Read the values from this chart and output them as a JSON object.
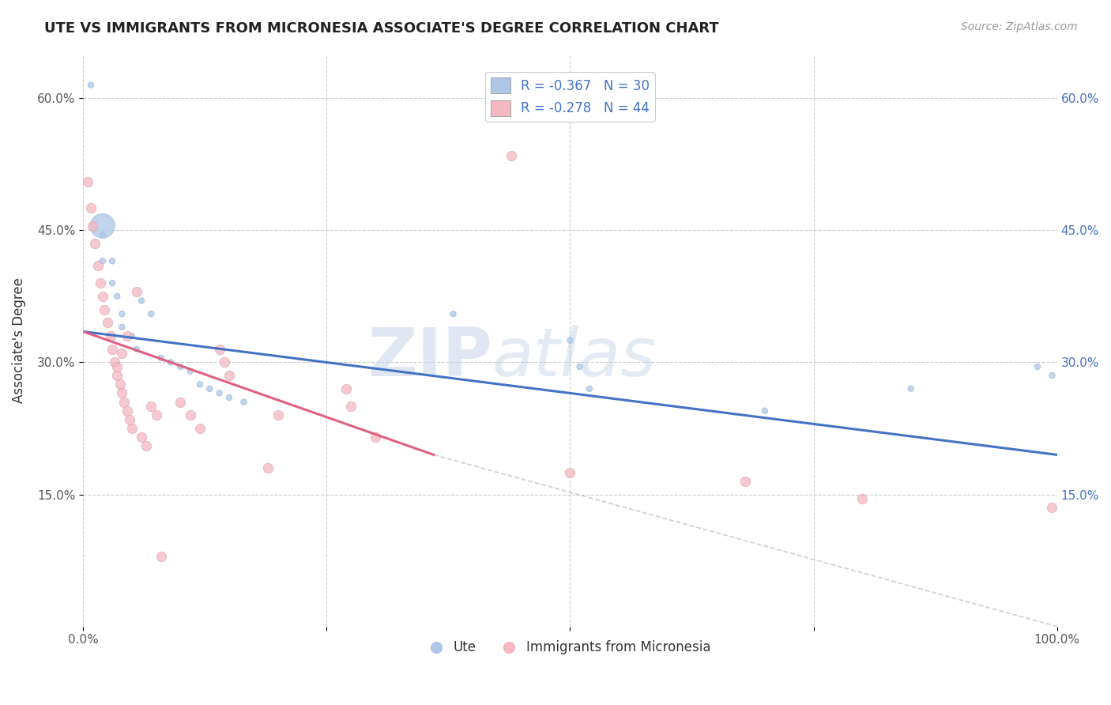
{
  "title": "UTE VS IMMIGRANTS FROM MICRONESIA ASSOCIATE'S DEGREE CORRELATION CHART",
  "source": "Source: ZipAtlas.com",
  "ylabel": "Associate's Degree",
  "xlabel": "",
  "xlim": [
    0.0,
    1.0
  ],
  "ylim": [
    0.0,
    0.65
  ],
  "yticks": [
    0.15,
    0.3,
    0.45,
    0.6
  ],
  "ytick_labels": [
    "15.0%",
    "30.0%",
    "45.0%",
    "60.0%"
  ],
  "xticks": [
    0.0,
    0.25,
    0.5,
    0.75,
    1.0
  ],
  "xtick_labels": [
    "0.0%",
    "",
    "",
    "",
    "100.0%"
  ],
  "legend_r_ute": "R = -0.367",
  "legend_n_ute": "N = 30",
  "legend_r_micro": "R = -0.278",
  "legend_n_micro": "N = 44",
  "watermark_zip": "ZIP",
  "watermark_atlas": "atlas",
  "background_color": "#ffffff",
  "grid_color": "#cccccc",
  "ute_color": "#aec6e8",
  "micro_color": "#f4b8c1",
  "ute_line_color": "#4472c4",
  "micro_line_color": "#e06080",
  "ute_line": [
    [
      0.0,
      0.335
    ],
    [
      1.0,
      0.195
    ]
  ],
  "micro_line": [
    [
      0.0,
      0.335
    ],
    [
      0.36,
      0.195
    ]
  ],
  "dash_line": [
    [
      0.36,
      0.195
    ],
    [
      1.0,
      0.0
    ]
  ],
  "ute_scatter": [
    [
      0.008,
      0.615
    ],
    [
      0.02,
      0.445
    ],
    [
      0.02,
      0.415
    ],
    [
      0.03,
      0.415
    ],
    [
      0.03,
      0.39
    ],
    [
      0.035,
      0.375
    ],
    [
      0.04,
      0.355
    ],
    [
      0.04,
      0.34
    ],
    [
      0.05,
      0.33
    ],
    [
      0.055,
      0.315
    ],
    [
      0.06,
      0.37
    ],
    [
      0.07,
      0.355
    ],
    [
      0.08,
      0.305
    ],
    [
      0.09,
      0.3
    ],
    [
      0.1,
      0.295
    ],
    [
      0.11,
      0.29
    ],
    [
      0.12,
      0.275
    ],
    [
      0.13,
      0.27
    ],
    [
      0.14,
      0.265
    ],
    [
      0.15,
      0.26
    ],
    [
      0.165,
      0.255
    ],
    [
      0.02,
      0.455
    ],
    [
      0.38,
      0.355
    ],
    [
      0.5,
      0.325
    ],
    [
      0.51,
      0.295
    ],
    [
      0.52,
      0.27
    ],
    [
      0.7,
      0.245
    ],
    [
      0.85,
      0.27
    ],
    [
      0.98,
      0.295
    ],
    [
      0.995,
      0.285
    ]
  ],
  "ute_sizes": [
    30,
    30,
    30,
    30,
    30,
    30,
    30,
    30,
    30,
    30,
    30,
    30,
    30,
    30,
    30,
    30,
    30,
    30,
    30,
    30,
    30,
    500,
    30,
    30,
    30,
    30,
    30,
    30,
    30,
    30
  ],
  "micro_scatter": [
    [
      0.005,
      0.505
    ],
    [
      0.008,
      0.475
    ],
    [
      0.01,
      0.455
    ],
    [
      0.012,
      0.435
    ],
    [
      0.015,
      0.41
    ],
    [
      0.018,
      0.39
    ],
    [
      0.02,
      0.375
    ],
    [
      0.022,
      0.36
    ],
    [
      0.025,
      0.345
    ],
    [
      0.028,
      0.33
    ],
    [
      0.03,
      0.315
    ],
    [
      0.032,
      0.3
    ],
    [
      0.035,
      0.285
    ],
    [
      0.038,
      0.275
    ],
    [
      0.04,
      0.265
    ],
    [
      0.042,
      0.255
    ],
    [
      0.045,
      0.245
    ],
    [
      0.048,
      0.235
    ],
    [
      0.05,
      0.225
    ],
    [
      0.055,
      0.38
    ],
    [
      0.06,
      0.215
    ],
    [
      0.065,
      0.205
    ],
    [
      0.07,
      0.25
    ],
    [
      0.075,
      0.24
    ],
    [
      0.08,
      0.08
    ],
    [
      0.1,
      0.255
    ],
    [
      0.11,
      0.24
    ],
    [
      0.12,
      0.225
    ],
    [
      0.14,
      0.315
    ],
    [
      0.145,
      0.3
    ],
    [
      0.15,
      0.285
    ],
    [
      0.19,
      0.18
    ],
    [
      0.2,
      0.24
    ],
    [
      0.27,
      0.27
    ],
    [
      0.275,
      0.25
    ],
    [
      0.3,
      0.215
    ],
    [
      0.44,
      0.535
    ],
    [
      0.5,
      0.175
    ],
    [
      0.68,
      0.165
    ],
    [
      0.8,
      0.145
    ],
    [
      0.995,
      0.135
    ],
    [
      0.035,
      0.295
    ],
    [
      0.04,
      0.31
    ],
    [
      0.045,
      0.33
    ]
  ]
}
